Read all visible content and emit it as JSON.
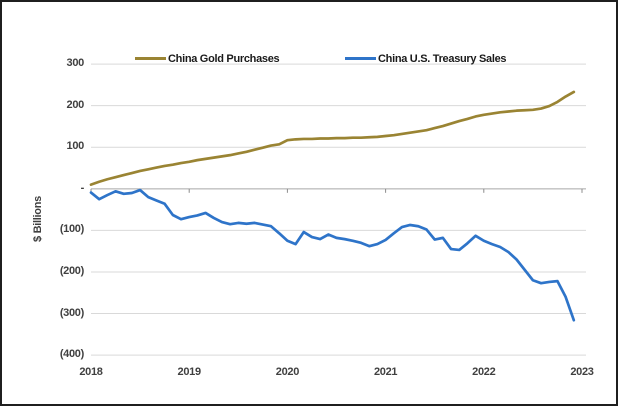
{
  "chart_data": {
    "type": "line",
    "title": "",
    "ylabel": "$ Billions",
    "xlabel": "",
    "x_unit": "month",
    "x_start": "2018-01",
    "x_end": "2022-12",
    "x_tick_labels": [
      "2018",
      "2019",
      "2020",
      "2021",
      "2022",
      "2023"
    ],
    "y_tick_labels": [
      "300",
      "200",
      "100",
      "-",
      "(100)",
      "(200)",
      "(300)",
      "(400)"
    ],
    "y_tick_values": [
      300,
      200,
      100,
      0,
      -100,
      -200,
      -300,
      -400
    ],
    "ylim": [
      -400,
      300
    ],
    "grid": true,
    "legend_position": "top-center",
    "series": [
      {
        "name": "China Gold Purchases",
        "color": "#9A8433",
        "values": [
          10,
          17,
          23,
          28,
          33,
          38,
          43,
          47,
          51,
          55,
          58,
          62,
          65,
          69,
          72,
          75,
          78,
          81,
          85,
          89,
          94,
          99,
          104,
          107,
          117,
          119,
          120,
          120,
          121,
          121,
          122,
          122,
          123,
          123,
          124,
          125,
          127,
          129,
          132,
          135,
          138,
          141,
          146,
          151,
          157,
          163,
          168,
          174,
          178,
          181,
          184,
          186,
          188,
          189,
          190,
          193,
          199,
          209,
          222,
          233
        ]
      },
      {
        "name": "China U.S. Treasury Sales",
        "color": "#2E74C9",
        "values": [
          -9,
          -25,
          -15,
          -6,
          -12,
          -10,
          -3,
          -20,
          -28,
          -36,
          -63,
          -73,
          -68,
          -64,
          -58,
          -70,
          -80,
          -85,
          -82,
          -84,
          -82,
          -86,
          -90,
          -107,
          -125,
          -133,
          -104,
          -116,
          -121,
          -110,
          -118,
          -121,
          -125,
          -130,
          -138,
          -133,
          -123,
          -107,
          -92,
          -87,
          -90,
          -98,
          -122,
          -118,
          -145,
          -147,
          -131,
          -113,
          -125,
          -133,
          -140,
          -152,
          -170,
          -195,
          -220,
          -227,
          -224,
          -222,
          -260,
          -316
        ]
      }
    ],
    "colors": {
      "grid": "#D9D9D9",
      "zero_axis": "#A6A6A6",
      "tick_mark": "#8C8C8C",
      "text": "#404040",
      "frame_border": "#1F1F1F",
      "background": "#FFFFFF"
    }
  }
}
